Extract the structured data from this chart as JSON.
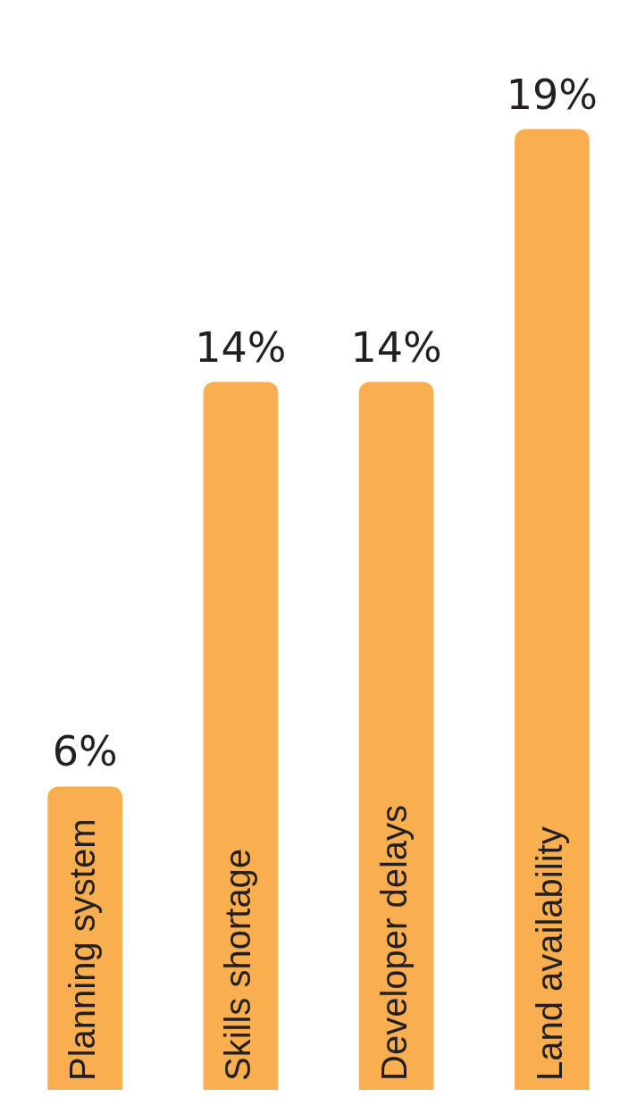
{
  "chart_data": {
    "type": "bar",
    "categories": [
      "Planning system",
      "Skills shortage",
      "Developer delays",
      "Land availability"
    ],
    "values": [
      6,
      14,
      14,
      19
    ],
    "value_labels": [
      "6%",
      "14%",
      "14%",
      "19%"
    ],
    "color": "#f9ae50",
    "legend": false
  }
}
